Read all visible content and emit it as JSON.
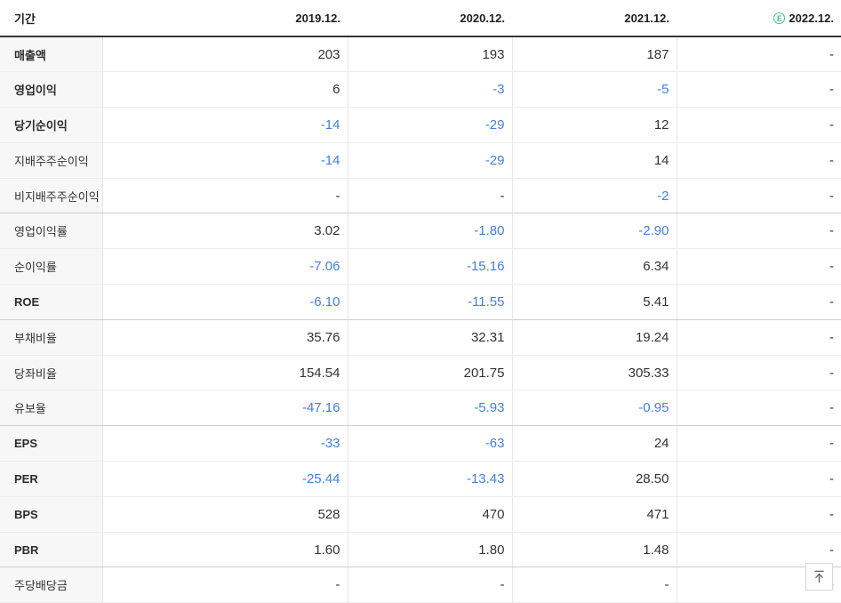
{
  "table": {
    "period_label": "기간",
    "columns": [
      "2019.12.",
      "2020.12.",
      "2021.12.",
      "2022.12."
    ],
    "estimate_letter": "E",
    "estimate_column_index": 3,
    "rows": [
      {
        "label": "매출액",
        "bold": true,
        "group_end": false,
        "values": [
          "203",
          "193",
          "187",
          "-"
        ]
      },
      {
        "label": "영업이익",
        "bold": true,
        "group_end": false,
        "values": [
          "6",
          "-3",
          "-5",
          "-"
        ]
      },
      {
        "label": "당기순이익",
        "bold": true,
        "group_end": false,
        "values": [
          "-14",
          "-29",
          "12",
          "-"
        ]
      },
      {
        "label": "지배주주순이익",
        "bold": false,
        "group_end": false,
        "values": [
          "-14",
          "-29",
          "14",
          "-"
        ]
      },
      {
        "label": "비지배주주순이익",
        "bold": false,
        "group_end": true,
        "values": [
          "-",
          "-",
          "-2",
          "-"
        ]
      },
      {
        "label": "영업이익률",
        "bold": false,
        "group_end": false,
        "values": [
          "3.02",
          "-1.80",
          "-2.90",
          "-"
        ]
      },
      {
        "label": "순이익률",
        "bold": false,
        "group_end": false,
        "values": [
          "-7.06",
          "-15.16",
          "6.34",
          "-"
        ]
      },
      {
        "label": "ROE",
        "bold": true,
        "group_end": true,
        "values": [
          "-6.10",
          "-11.55",
          "5.41",
          "-"
        ]
      },
      {
        "label": "부채비율",
        "bold": false,
        "group_end": false,
        "values": [
          "35.76",
          "32.31",
          "19.24",
          "-"
        ]
      },
      {
        "label": "당좌비율",
        "bold": false,
        "group_end": false,
        "values": [
          "154.54",
          "201.75",
          "305.33",
          "-"
        ]
      },
      {
        "label": "유보율",
        "bold": false,
        "group_end": true,
        "values": [
          "-47.16",
          "-5.93",
          "-0.95",
          "-"
        ]
      },
      {
        "label": "EPS",
        "bold": true,
        "group_end": false,
        "values": [
          "-33",
          "-63",
          "24",
          "-"
        ]
      },
      {
        "label": "PER",
        "bold": true,
        "group_end": false,
        "values": [
          "-25.44",
          "-13.43",
          "28.50",
          "-"
        ]
      },
      {
        "label": "BPS",
        "bold": true,
        "group_end": false,
        "values": [
          "528",
          "470",
          "471",
          "-"
        ]
      },
      {
        "label": "PBR",
        "bold": true,
        "group_end": true,
        "values": [
          "1.60",
          "1.80",
          "1.48",
          "-"
        ]
      },
      {
        "label": "주당배당금",
        "bold": false,
        "group_end": false,
        "values": [
          "-",
          "-",
          "-",
          "-"
        ]
      }
    ]
  },
  "colors": {
    "negative_value": "#4180de",
    "estimate_badge": "#3fc08e",
    "header_border": "#33363d",
    "label_column_bg": "#f7f7f7"
  },
  "scroll_top_button": {
    "icon": "scroll-to-top-icon"
  }
}
